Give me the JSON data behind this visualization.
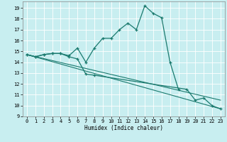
{
  "xlabel": "Humidex (Indice chaleur)",
  "xlim": [
    -0.5,
    23.5
  ],
  "ylim": [
    9,
    19.6
  ],
  "yticks": [
    9,
    10,
    11,
    12,
    13,
    14,
    15,
    16,
    17,
    18,
    19
  ],
  "xticks": [
    0,
    1,
    2,
    3,
    4,
    5,
    6,
    7,
    8,
    9,
    10,
    11,
    12,
    13,
    14,
    15,
    16,
    17,
    18,
    19,
    20,
    21,
    22,
    23
  ],
  "background_color": "#c8eef0",
  "grid_color": "#ffffff",
  "line_color": "#1a7a6e",
  "line1_x": [
    0,
    1,
    2,
    3,
    4,
    5,
    6,
    7,
    8,
    9,
    10,
    11,
    12,
    13,
    14,
    15,
    16,
    17,
    18
  ],
  "line1_y": [
    14.7,
    14.5,
    14.7,
    14.8,
    14.8,
    14.6,
    15.3,
    14.0,
    15.3,
    16.2,
    16.2,
    17.0,
    17.6,
    17.0,
    19.2,
    18.5,
    18.1,
    14.0,
    11.5
  ],
  "line2_x": [
    0,
    1,
    2,
    3,
    4,
    5,
    6,
    7,
    8,
    19,
    20,
    21,
    22,
    23
  ],
  "line2_y": [
    14.7,
    14.5,
    14.7,
    14.8,
    14.8,
    14.5,
    14.3,
    12.9,
    12.8,
    11.5,
    10.5,
    10.7,
    10.0,
    9.7
  ],
  "trend1_x": [
    0,
    23
  ],
  "trend1_y": [
    14.7,
    9.7
  ],
  "trend2_x": [
    0,
    23
  ],
  "trend2_y": [
    14.7,
    10.5
  ]
}
